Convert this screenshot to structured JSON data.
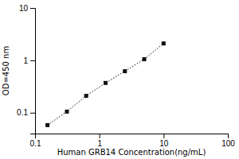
{
  "chart_data": {
    "type": "line",
    "xlabel": "Human GRB14 Concentration(ng/mL)",
    "ylabel": "OD=450 nm",
    "x": [
      0.156,
      0.313,
      0.625,
      1.25,
      2.5,
      5.0,
      10.0
    ],
    "values": [
      0.058,
      0.105,
      0.21,
      0.37,
      0.62,
      1.05,
      2.1
    ],
    "xlim": [
      0.1,
      100
    ],
    "ylim": [
      0.04,
      10
    ],
    "xticks": [
      0.1,
      1,
      10,
      100
    ],
    "yticks": [
      0.1,
      1,
      10
    ],
    "log": true,
    "grid": false,
    "color": "#111111",
    "marker": "square",
    "line_style": "dotted"
  }
}
